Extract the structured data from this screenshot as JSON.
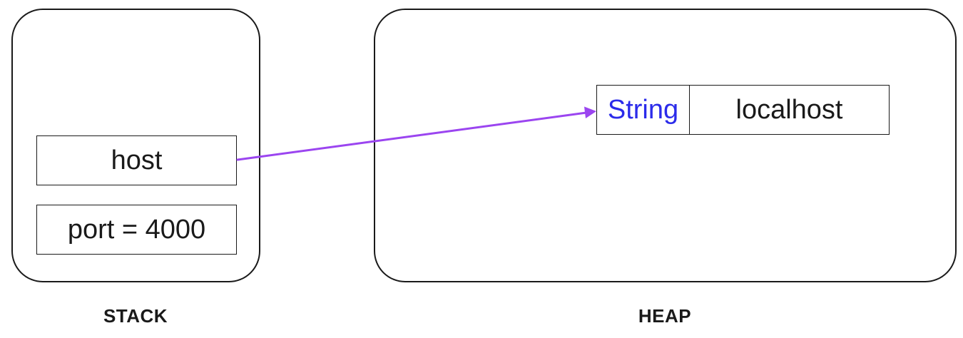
{
  "stack": {
    "label": "STACK",
    "cells": [
      {
        "text": "host"
      },
      {
        "text": "port = 4000"
      }
    ]
  },
  "heap": {
    "label": "HEAP",
    "object": {
      "type": "String",
      "value": "localhost"
    }
  },
  "colors": {
    "type_text": "#2b2bea",
    "arrow": "#9b45f0",
    "border": "#1a1a1a"
  }
}
